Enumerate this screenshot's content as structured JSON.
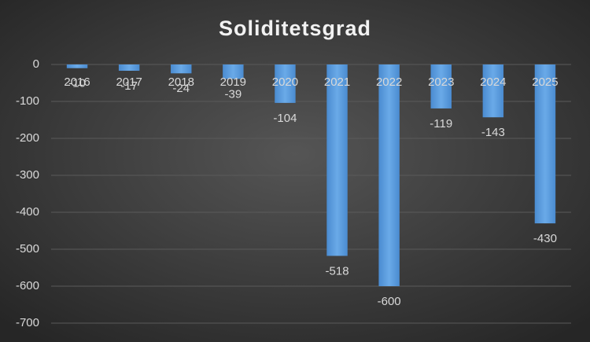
{
  "chart_data": {
    "type": "bar",
    "title": "Soliditetsgrad",
    "categories": [
      "2016",
      "2017",
      "2018",
      "2019",
      "2020",
      "2021",
      "2022",
      "2023",
      "2024",
      "2025"
    ],
    "values": [
      -10,
      -17,
      -24,
      -39,
      -104,
      -518,
      -600,
      -119,
      -143,
      -430
    ],
    "color": "#5b9bd5",
    "ylim": [
      -700,
      0
    ],
    "yticks": [
      0,
      -100,
      -200,
      -300,
      -400,
      -500,
      -600,
      -700
    ],
    "grid": true
  }
}
